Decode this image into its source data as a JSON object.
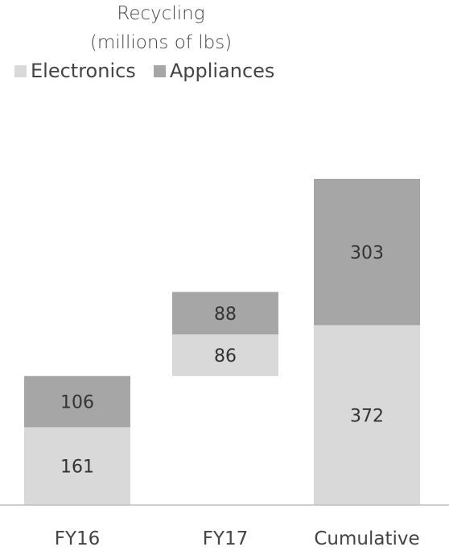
{
  "chart_data": {
    "type": "bar",
    "title_lines": [
      "Recycling",
      "(millions of lbs)"
    ],
    "categories": [
      "FY16",
      "FY17",
      "Cumulative"
    ],
    "series": [
      {
        "name": "Electronics",
        "values": [
          161,
          86,
          372
        ],
        "color": "#d9d9d9"
      },
      {
        "name": "Appliances",
        "values": [
          106,
          88,
          303
        ],
        "color": "#a6a6a6"
      }
    ],
    "waterfall_offsets": [
      0,
      267,
      0
    ],
    "ylim": [
      0,
      675
    ],
    "xlabel": "",
    "ylabel": "",
    "grid": false,
    "legend": "top-left"
  }
}
